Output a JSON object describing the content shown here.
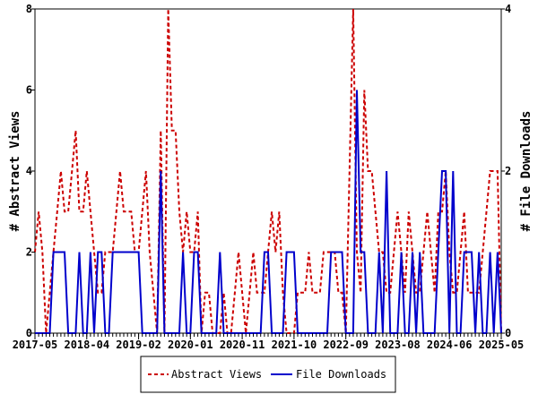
{
  "chart_data": {
    "type": "line",
    "xlabel": "",
    "ylabel": "# Abstract Views",
    "y2label": "# File Downloads",
    "ylim": [
      0,
      8
    ],
    "y2lim": [
      0,
      4
    ],
    "y_ticks": [
      "0",
      "2",
      "4",
      "6",
      "8"
    ],
    "y2_ticks": [
      "0",
      "2",
      "4"
    ],
    "x_ticks": [
      "2017-05",
      "2018-04",
      "2019-02",
      "2020-01",
      "2020-11",
      "2021-10",
      "2022-09",
      "2023-08",
      "2024-06",
      "2025-05"
    ],
    "grid": false,
    "legend_position": "bottom",
    "series": [
      {
        "name": "Abstract Views",
        "axis": "left",
        "color": "#cc0000",
        "style": "dashed",
        "values": [
          2,
          3,
          2,
          0,
          1,
          2,
          3,
          4,
          3,
          3,
          4,
          5,
          3,
          3,
          4,
          3,
          2,
          1,
          1,
          2,
          2,
          2,
          3,
          4,
          3,
          3,
          3,
          2,
          2,
          3,
          4,
          2,
          1,
          0,
          5,
          0,
          8,
          5,
          5,
          3,
          2,
          3,
          2,
          2,
          3,
          0,
          1,
          1,
          0,
          0,
          0,
          1,
          0,
          0,
          1,
          2,
          1,
          0,
          1,
          2,
          1,
          1,
          1,
          2,
          3,
          2,
          3,
          1,
          0,
          0,
          0,
          1,
          1,
          1,
          2,
          1,
          1,
          1,
          2,
          2,
          2,
          2,
          1,
          1,
          0,
          4,
          8,
          2,
          1,
          6,
          4,
          4,
          3,
          2,
          2,
          1,
          1,
          2,
          3,
          2,
          1,
          3,
          2,
          1,
          1,
          2,
          3,
          2,
          1,
          3,
          3,
          4,
          2,
          1,
          1,
          2,
          3,
          1,
          1,
          1,
          1,
          2,
          3,
          4,
          4,
          4,
          0
        ]
      },
      {
        "name": "File Downloads",
        "axis": "right",
        "color": "#0000cc",
        "style": "solid",
        "values": [
          0,
          0,
          0,
          0,
          0,
          1,
          1,
          1,
          1,
          0,
          0,
          0,
          1,
          0,
          0,
          1,
          0,
          1,
          1,
          0,
          0,
          1,
          1,
          1,
          1,
          1,
          1,
          1,
          1,
          0,
          0,
          0,
          0,
          0,
          2,
          0,
          0,
          0,
          0,
          0,
          1,
          0,
          0,
          1,
          1,
          0,
          0,
          0,
          0,
          0,
          1,
          0,
          0,
          0,
          0,
          0,
          0,
          0,
          0,
          0,
          0,
          0,
          1,
          1,
          0,
          0,
          0,
          0,
          1,
          1,
          1,
          0,
          0,
          0,
          0,
          0,
          0,
          0,
          0,
          0,
          1,
          1,
          1,
          1,
          0,
          0,
          0,
          3,
          1,
          1,
          0,
          0,
          0,
          1,
          0,
          2,
          0,
          0,
          0,
          1,
          0,
          0,
          1,
          0,
          1,
          0,
          0,
          0,
          0,
          1,
          2,
          2,
          0,
          2,
          0,
          0,
          1,
          1,
          1,
          0,
          1,
          0,
          0,
          1,
          0,
          1,
          0
        ]
      }
    ]
  }
}
